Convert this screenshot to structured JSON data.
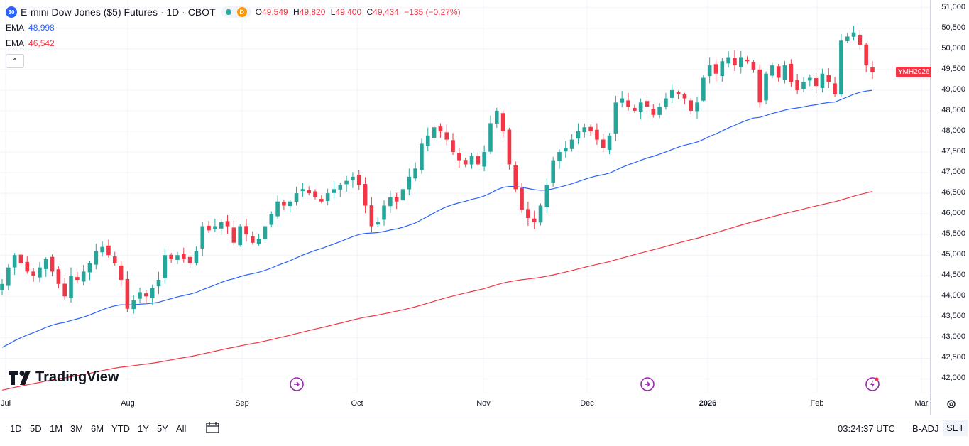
{
  "header": {
    "symbol_badge": "30",
    "title": "E-mini Dow Jones ($5) Futures · 1D · CBOT",
    "delay_badge": "D",
    "ohlc": {
      "o_label": "O",
      "o": "49,549",
      "h_label": "H",
      "h": "49,820",
      "l_label": "L",
      "l": "49,400",
      "c_label": "C",
      "c": "49,434",
      "change": "−135 (−0.27%)"
    },
    "ema_fast": {
      "label": "EMA",
      "value": "48,998",
      "color": "#2962ff"
    },
    "ema_slow": {
      "label": "EMA",
      "value": "46,542",
      "color": "#f23645"
    },
    "collapse_icon": "chevron-up-icon"
  },
  "branding": {
    "logo_text": "TradingView"
  },
  "toolbar": {
    "ranges": [
      "1D",
      "5D",
      "1M",
      "3M",
      "6M",
      "YTD",
      "1Y",
      "5Y",
      "All"
    ],
    "calendar_icon": "calendar-range-icon",
    "clock": "03:24:37 UTC",
    "adj": "B-ADJ",
    "set": "SET"
  },
  "axis": {
    "settings_icon": "gear-icon"
  },
  "chart_data": {
    "type": "candlestick",
    "up_color": "#26a69a",
    "down_color": "#f23645",
    "y_ticks": [
      "51,000",
      "50,500",
      "50,000",
      "49,500",
      "49,000",
      "48,500",
      "48,000",
      "47,500",
      "47,000",
      "46,500",
      "46,000",
      "45,500",
      "45,000",
      "44,500",
      "44,000",
      "43,500",
      "43,000",
      "42,500",
      "42,000"
    ],
    "ylim": [
      41800,
      51100
    ],
    "x_ticks": [
      "Jul",
      "Aug",
      "Sep",
      "Oct",
      "Nov",
      "Dec",
      "2026",
      "Feb",
      "Mar"
    ],
    "last_price_label": "YMH2026",
    "last_price": 49434,
    "closes": [
      44300,
      44700,
      45000,
      44800,
      44600,
      44500,
      44700,
      44900,
      44600,
      44300,
      44000,
      44500,
      44400,
      44600,
      44800,
      45100,
      45200,
      45000,
      44800,
      44400,
      43700,
      43900,
      44100,
      44000,
      44200,
      44400,
      45000,
      44900,
      45000,
      44900,
      44800,
      45100,
      45700,
      45600,
      45700,
      45800,
      45700,
      45300,
      45700,
      45500,
      45300,
      45400,
      45700,
      46000,
      46300,
      46200,
      46300,
      46500,
      46600,
      46500,
      46400,
      46300,
      46500,
      46600,
      46700,
      46800,
      46900,
      46700,
      46200,
      45700,
      45800,
      46200,
      46400,
      46300,
      46600,
      46900,
      47100,
      47700,
      47900,
      48100,
      48000,
      47800,
      47500,
      47300,
      47200,
      47400,
      47200,
      47500,
      48200,
      48500,
      48000,
      47200,
      46600,
      46100,
      45900,
      45800,
      46200,
      46700,
      47300,
      47500,
      47600,
      47800,
      48000,
      48100,
      48000,
      47800,
      47600,
      47900,
      48700,
      48800,
      48600,
      48500,
      48700,
      48600,
      48400,
      48600,
      48800,
      49000,
      48900,
      48800,
      48500,
      48700,
      49300,
      49600,
      49400,
      49700,
      49800,
      49600,
      49800,
      49700,
      49500,
      48700,
      49400,
      49600,
      49300,
      49600,
      49200,
      49000,
      49200,
      49300,
      49100,
      49400,
      49200,
      48900,
      50200,
      50300,
      50400,
      50100,
      49600,
      49434
    ],
    "ema_fast_last": 48998,
    "ema_slow_last": 46542
  }
}
